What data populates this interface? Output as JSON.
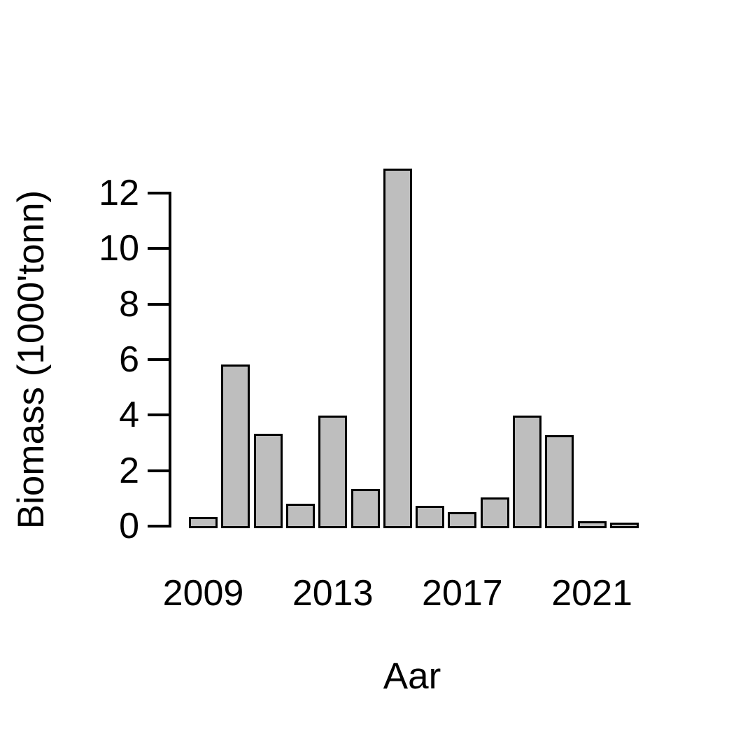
{
  "chart_data": {
    "type": "bar",
    "title": "",
    "xlabel": "Aar",
    "ylabel": "Biomass (1000'tonn)",
    "categories": [
      "2009",
      "2010",
      "2011",
      "2012",
      "2013",
      "2014",
      "2015",
      "2016",
      "2017",
      "2018",
      "2019",
      "2020",
      "2021",
      "2022"
    ],
    "values": [
      0.25,
      5.75,
      3.25,
      0.73,
      3.9,
      1.27,
      12.8,
      0.65,
      0.43,
      0.95,
      3.9,
      3.2,
      0.1,
      0.05
    ],
    "ylim": [
      0,
      12
    ],
    "yticks": [
      0,
      2,
      4,
      6,
      8,
      10,
      12
    ],
    "xticks": [
      {
        "label": "2009",
        "category_index": 0
      },
      {
        "label": "2013",
        "category_index": 4
      },
      {
        "label": "2017",
        "category_index": 8
      },
      {
        "label": "2021",
        "category_index": 12
      }
    ],
    "legend": "none",
    "grid": false,
    "colors": {
      "bar_fill": "#BEBEBE",
      "bar_border": "#000000",
      "axis": "#000000",
      "text": "#000000",
      "background": "#FFFFFF"
    }
  }
}
